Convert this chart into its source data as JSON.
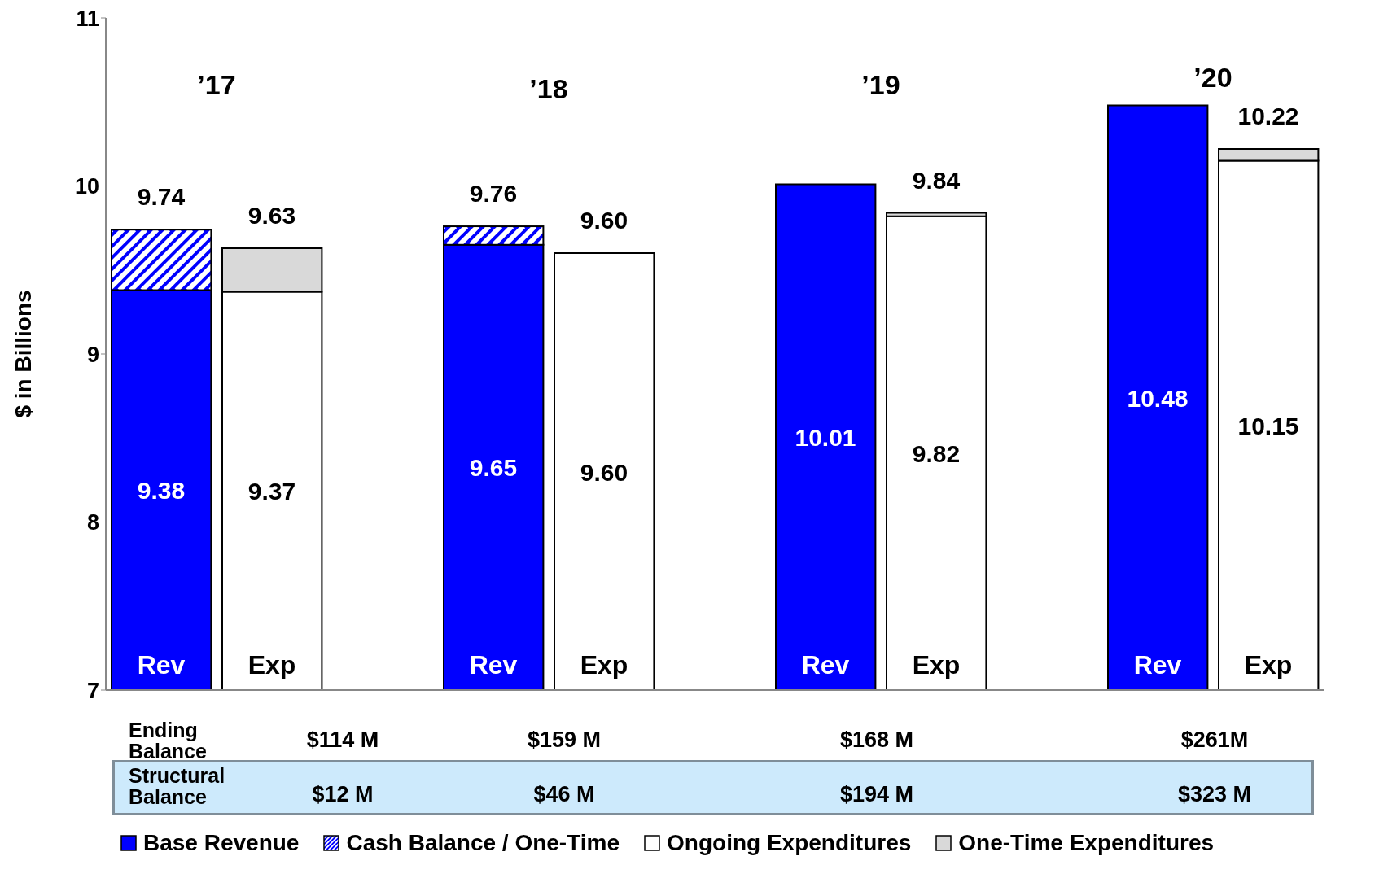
{
  "chart_data": {
    "type": "bar",
    "ylabel": "$ in Billions",
    "categories": [
      "Rev",
      "Exp",
      null,
      "Rev",
      "Exp",
      null,
      "Rev",
      "Exp",
      null,
      "Rev",
      "Exp"
    ],
    "ylim": [
      7,
      11
    ],
    "yticks": [
      7,
      8,
      9,
      10,
      11
    ],
    "grid": false,
    "legend": "bottom",
    "series": [
      {
        "name": "Base Revenue",
        "color": "#0000ff",
        "values": [
          9.38,
          null,
          null,
          9.65,
          null,
          null,
          10.01,
          null,
          null,
          10.48,
          null
        ],
        "value_labels": [
          "9.38",
          null,
          null,
          "9.65",
          null,
          null,
          "10.01",
          null,
          null,
          "10.48",
          null
        ]
      },
      {
        "name": "Cash Balance / One-Time",
        "color": "#0000ff",
        "values": [
          0.36,
          null,
          null,
          0.11,
          null,
          null,
          null,
          null,
          null,
          null,
          null
        ],
        "base": [
          9.38,
          null,
          null,
          9.65,
          null,
          null,
          null,
          null,
          null,
          null,
          null
        ]
      },
      {
        "name": "Ongoing Expenditures",
        "color": "#ffffff",
        "values": [
          null,
          9.37,
          null,
          null,
          9.6,
          null,
          null,
          9.82,
          null,
          null,
          10.15
        ],
        "value_labels": [
          null,
          "9.37",
          null,
          null,
          "9.60",
          null,
          null,
          "9.82",
          null,
          null,
          "10.15"
        ]
      },
      {
        "name": "One-Time Expenditures",
        "color": "#d9d9d9",
        "values": [
          null,
          0.26,
          null,
          null,
          null,
          null,
          null,
          0.02,
          null,
          null,
          0.07
        ],
        "base": [
          null,
          9.37,
          null,
          null,
          null,
          null,
          null,
          9.82,
          null,
          null,
          10.15
        ]
      }
    ],
    "totals": [
      "9.74",
      "9.63",
      null,
      "9.76",
      "9.60",
      null,
      null,
      "9.84",
      null,
      null,
      "10.22"
    ],
    "annotations": [
      "’17",
      "’18",
      "’19",
      "’20",
      "Ending Balance",
      "$114 M",
      "$159 M",
      "$168 M",
      "$261M",
      "Structural Balance",
      "$12 M",
      "$46 M",
      "$194 M",
      "$323 M"
    ]
  }
}
